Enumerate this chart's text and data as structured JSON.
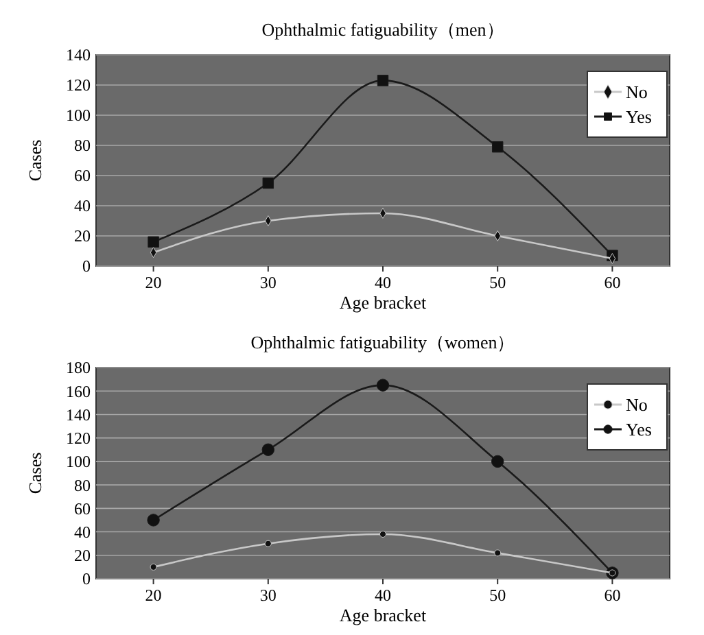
{
  "chart_data": [
    {
      "type": "line",
      "title": "Ophthalmic fatiguability（men）",
      "xlabel": "Age bracket",
      "ylabel": "Cases",
      "x": [
        20,
        30,
        40,
        50,
        60
      ],
      "xlim": [
        15,
        65
      ],
      "xticks": [
        20,
        30,
        40,
        50,
        60
      ],
      "ylim": [
        0,
        140
      ],
      "yticks": [
        0,
        20,
        40,
        60,
        80,
        100,
        120,
        140
      ],
      "grid": "y",
      "legend": "top right",
      "series": [
        {
          "name": "No",
          "color": "#c8c8c8",
          "marker": "diamond",
          "values": [
            9,
            30,
            35,
            20,
            5
          ]
        },
        {
          "name": "Yes",
          "color": "#1a1a1a",
          "marker": "square",
          "values": [
            16,
            55,
            123,
            79,
            7
          ]
        }
      ]
    },
    {
      "type": "line",
      "title": "Ophthalmic fatiguability（women）",
      "xlabel": "Age bracket",
      "ylabel": "Cases",
      "x": [
        20,
        30,
        40,
        50,
        60
      ],
      "xlim": [
        15,
        65
      ],
      "xticks": [
        20,
        30,
        40,
        50,
        60
      ],
      "ylim": [
        0,
        180
      ],
      "yticks": [
        0,
        20,
        40,
        60,
        80,
        100,
        120,
        140,
        160,
        180
      ],
      "grid": "y",
      "legend": "top right",
      "series": [
        {
          "name": "No",
          "color": "#c8c8c8",
          "marker": "circle",
          "values": [
            10,
            30,
            38,
            22,
            5
          ]
        },
        {
          "name": "Yes",
          "color": "#1a1a1a",
          "marker": "circle",
          "values": [
            50,
            110,
            165,
            100,
            5
          ]
        }
      ]
    }
  ]
}
